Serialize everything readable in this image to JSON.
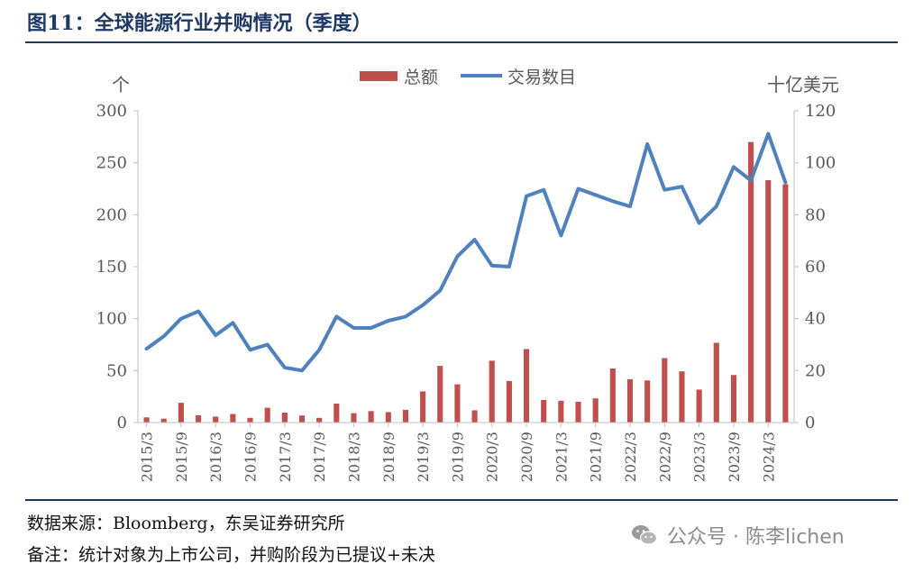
{
  "figure": {
    "title": "图11：全球能源行业并购情况（季度）",
    "source": "数据来源：Bloomberg，东吴证券研究所",
    "note": "备注：统计对象为上市公司，并购阶段为已提议+未决"
  },
  "watermark": {
    "text": "公众号 · 陈李lichen",
    "icon": "wechat-icon"
  },
  "colors": {
    "bar": "#c0504d",
    "line": "#4f81bd",
    "title": "#1f3864",
    "axis": "#bfbfbf",
    "text": "#595959"
  },
  "chart_data": {
    "type": "bar+line",
    "grid": false,
    "legend_position": "top-center",
    "x": [
      "2015/3",
      "2015/6",
      "2015/9",
      "2015/12",
      "2016/3",
      "2016/6",
      "2016/9",
      "2016/12",
      "2017/3",
      "2017/6",
      "2017/9",
      "2017/12",
      "2018/3",
      "2018/6",
      "2018/9",
      "2018/12",
      "2019/3",
      "2019/6",
      "2019/9",
      "2019/12",
      "2020/3",
      "2020/6",
      "2020/9",
      "2020/12",
      "2021/3",
      "2021/6",
      "2021/9",
      "2021/12",
      "2022/3",
      "2022/6",
      "2022/9",
      "2022/12",
      "2023/3",
      "2023/6",
      "2023/9",
      "2023/12",
      "2024/3",
      "2024/6"
    ],
    "x_tick_labels": [
      "2015/3",
      "2015/9",
      "2016/3",
      "2016/9",
      "2017/3",
      "2017/9",
      "2018/3",
      "2018/9",
      "2019/3",
      "2019/9",
      "2020/3",
      "2020/9",
      "2021/3",
      "2021/9",
      "2022/3",
      "2022/9",
      "2023/3",
      "2023/9",
      "2024/3"
    ],
    "left_axis": {
      "unit_label": "个",
      "range": [
        0,
        300
      ],
      "ticks": [
        "0",
        "50",
        "100",
        "150",
        "200",
        "250",
        "300"
      ]
    },
    "right_axis": {
      "unit_label": "十亿美元",
      "range": [
        0,
        120
      ],
      "ticks": [
        "0",
        "20",
        "40",
        "60",
        "80",
        "100",
        "120"
      ]
    },
    "series": [
      {
        "name": "总额",
        "type": "bar",
        "axis": "right",
        "values": [
          2,
          1.5,
          7.6,
          2.8,
          2.3,
          3.3,
          1.8,
          5.7,
          3.8,
          2.7,
          1.8,
          7.3,
          3.6,
          4.4,
          4,
          4.9,
          12,
          21.8,
          14.7,
          4.7,
          23.8,
          16,
          28.3,
          8.7,
          8.4,
          8,
          9.3,
          20.8,
          16.7,
          16.2,
          24.8,
          19.7,
          12.7,
          30.7,
          18.3,
          108,
          93.3,
          91.7
        ]
      },
      {
        "name": "交易数目",
        "type": "line",
        "axis": "left",
        "values": [
          71,
          83,
          100,
          107,
          84,
          96,
          70,
          75,
          53,
          50,
          70,
          102,
          91,
          91,
          98,
          102,
          113,
          127,
          160,
          176,
          151,
          150,
          218,
          224,
          180,
          225,
          219,
          213,
          208,
          268,
          224,
          227,
          192,
          208,
          246,
          233,
          278,
          231
        ]
      }
    ]
  }
}
